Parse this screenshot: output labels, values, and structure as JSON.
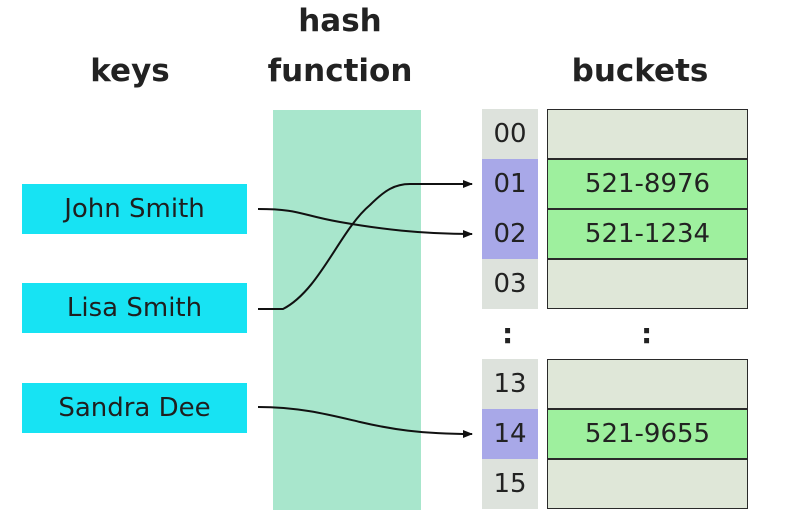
{
  "headings": {
    "keys": "keys",
    "hash_line1": "hash",
    "hash_line2": "function",
    "buckets": "buckets"
  },
  "keys": [
    "John Smith",
    "Lisa Smith",
    "Sandra Dee"
  ],
  "bucket_groups": [
    {
      "rows": [
        {
          "index": "00",
          "value": "",
          "highlighted": false
        },
        {
          "index": "01",
          "value": "521-8976",
          "highlighted": true
        },
        {
          "index": "02",
          "value": "521-1234",
          "highlighted": true
        },
        {
          "index": "03",
          "value": "",
          "highlighted": false
        }
      ]
    },
    {
      "rows": [
        {
          "index": "13",
          "value": "",
          "highlighted": false
        },
        {
          "index": "14",
          "value": "521-9655",
          "highlighted": true
        },
        {
          "index": "15",
          "value": "",
          "highlighted": false
        }
      ]
    }
  ],
  "ellipsis": ":",
  "mappings": [
    {
      "from": "John Smith",
      "to": "02"
    },
    {
      "from": "Lisa Smith",
      "to": "01"
    },
    {
      "from": "Sandra Dee",
      "to": "14"
    }
  ],
  "colors": {
    "key_fill": "#17e3f3",
    "hash_band": "#a8e6cc",
    "index_default": "#dde2dc",
    "index_highlight": "#a8a8e8",
    "bucket_empty": "#dfe7d8",
    "bucket_filled": "#9ef09e"
  }
}
